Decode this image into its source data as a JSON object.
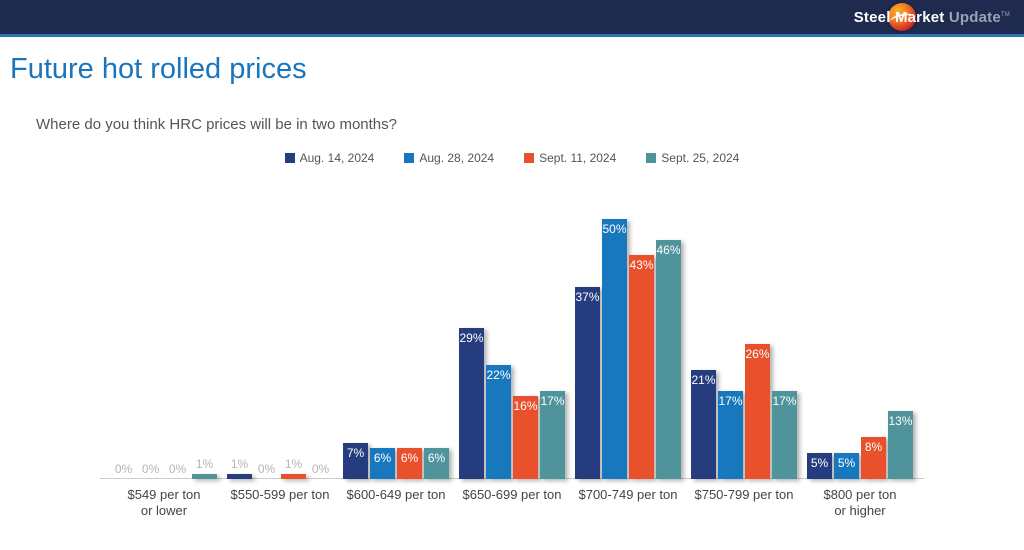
{
  "header": {
    "logo_steel": "Steel",
    "logo_market": "Market",
    "logo_update": "Update",
    "logo_tm": "TM"
  },
  "page": {
    "title": "Future hot rolled prices",
    "question": "Where do you think HRC prices will be in two months?"
  },
  "colors": {
    "header_bg": "#1e2b4e",
    "rule_blue": "#2e75b6",
    "title_blue": "#1a75bc",
    "label_outside": "#b5b5b5",
    "label_inside": "#ffffff"
  },
  "chart_data": {
    "type": "bar",
    "title": "Future hot rolled prices",
    "subtitle": "Where do you think HRC prices will be in two months?",
    "categories": [
      "$549 per ton\nor lower",
      "$550-599 per ton",
      "$600-649 per ton",
      "$650-699 per ton",
      "$700-749 per ton",
      "$750-799 per ton",
      "$800 per ton\nor higher"
    ],
    "series": [
      {
        "name": "Aug. 14, 2024",
        "color": "#253d7f",
        "values": [
          0,
          1,
          7,
          29,
          37,
          21,
          5
        ]
      },
      {
        "name": "Aug. 28, 2024",
        "color": "#1878bd",
        "values": [
          0,
          0,
          6,
          22,
          50,
          17,
          5
        ]
      },
      {
        "name": "Sept. 11, 2024",
        "color": "#e8512b",
        "values": [
          0,
          1,
          6,
          16,
          43,
          26,
          8
        ]
      },
      {
        "name": "Sept. 25, 2024",
        "color": "#4f939b",
        "values": [
          1,
          0,
          6,
          17,
          46,
          17,
          13
        ]
      }
    ],
    "value_suffix": "%",
    "xlabel": "",
    "ylabel": "",
    "ylim": [
      0,
      55
    ],
    "grid": false,
    "legend_position": "top",
    "value_labels": "inside-top-if-large-else-above-gray"
  }
}
